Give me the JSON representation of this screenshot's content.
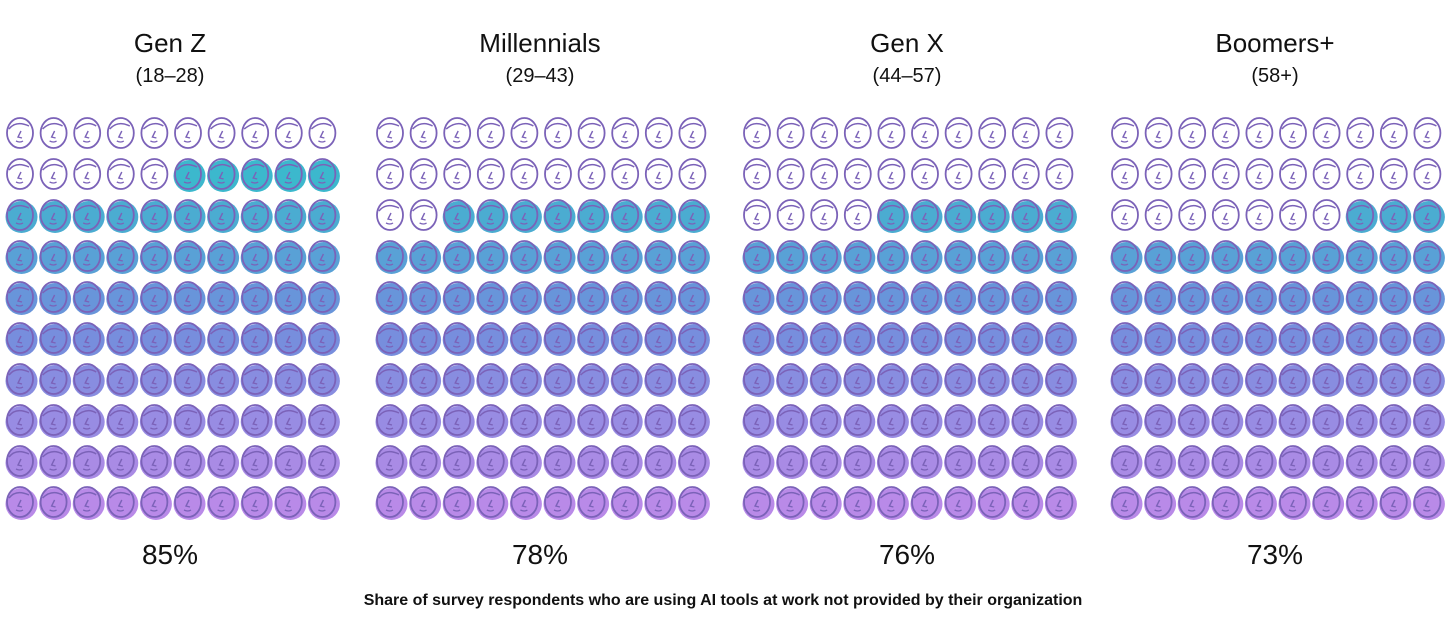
{
  "chart_data": {
    "type": "waffle",
    "caption": "Share of survey respondents who are using AI tools at work not provided by their organization",
    "icon": "face-icon",
    "grid": {
      "rows": 10,
      "cols": 10
    },
    "groups": [
      {
        "name": "Gen Z",
        "range": "(18–28)",
        "value": 85,
        "label": "85%"
      },
      {
        "name": "Millennials",
        "range": "(29–43)",
        "value": 78,
        "label": "78%"
      },
      {
        "name": "Gen X",
        "range": "(44–57)",
        "value": 76,
        "label": "76%"
      },
      {
        "name": "Boomers+",
        "range": "(58+)",
        "value": 73,
        "label": "73%"
      }
    ],
    "colors": {
      "outline": "#7b62b8",
      "fill_top": "#2ec4c9",
      "fill_mid": "#6f8fdc",
      "fill_bottom": "#b98ae8"
    }
  }
}
